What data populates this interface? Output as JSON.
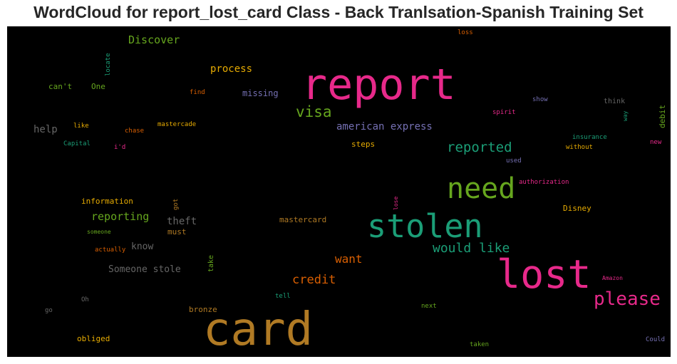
{
  "title": "WordCloud for report_lost_card Class - Back Tranlsation-Spanish Training Set",
  "words": {
    "card": "card",
    "report": "report",
    "lost": "lost",
    "stolen": "stolen",
    "need": "need",
    "please": "please",
    "visa": "visa",
    "reported": "reported",
    "would_like": "would like",
    "credit": "credit",
    "want": "want",
    "american_express": "american express",
    "reporting": "reporting",
    "discover": "Discover",
    "process": "process",
    "someone_stole": "Someone stole",
    "know": "know",
    "theft": "theft",
    "must": "must",
    "missing": "missing",
    "steps": "steps",
    "information": "information",
    "disney": "Disney",
    "mastercard": "mastercard",
    "help": "help",
    "cant": "can't",
    "one": "One",
    "bronze": "bronze",
    "obliged": "obliged",
    "take": "take",
    "debit": "debit",
    "loss": "loss",
    "locate": "locate",
    "find": "find",
    "like": "like",
    "chase": "chase",
    "mastercade": "mastercade",
    "capital": "Capital",
    "id": "i'd",
    "show": "show",
    "think": "think",
    "spirit": "spirit",
    "way": "way",
    "insurance": "insurance",
    "without": "without",
    "new": "new",
    "used": "used",
    "authorization": "authorization",
    "got": "got",
    "lose": "lose",
    "someone": "someone",
    "actually": "actually",
    "amazon": "Amazon",
    "oh": "Oh",
    "go": "go",
    "tell": "tell",
    "next": "next",
    "could": "Could",
    "taken": "taken"
  },
  "colors": {
    "pink": "#e7298a",
    "gold": "#b07a24",
    "teal": "#1b9e77",
    "green": "#66a61e",
    "orange": "#d95f02",
    "purple": "#7570b3",
    "yellow": "#e6ab02",
    "gray": "#666666"
  }
}
